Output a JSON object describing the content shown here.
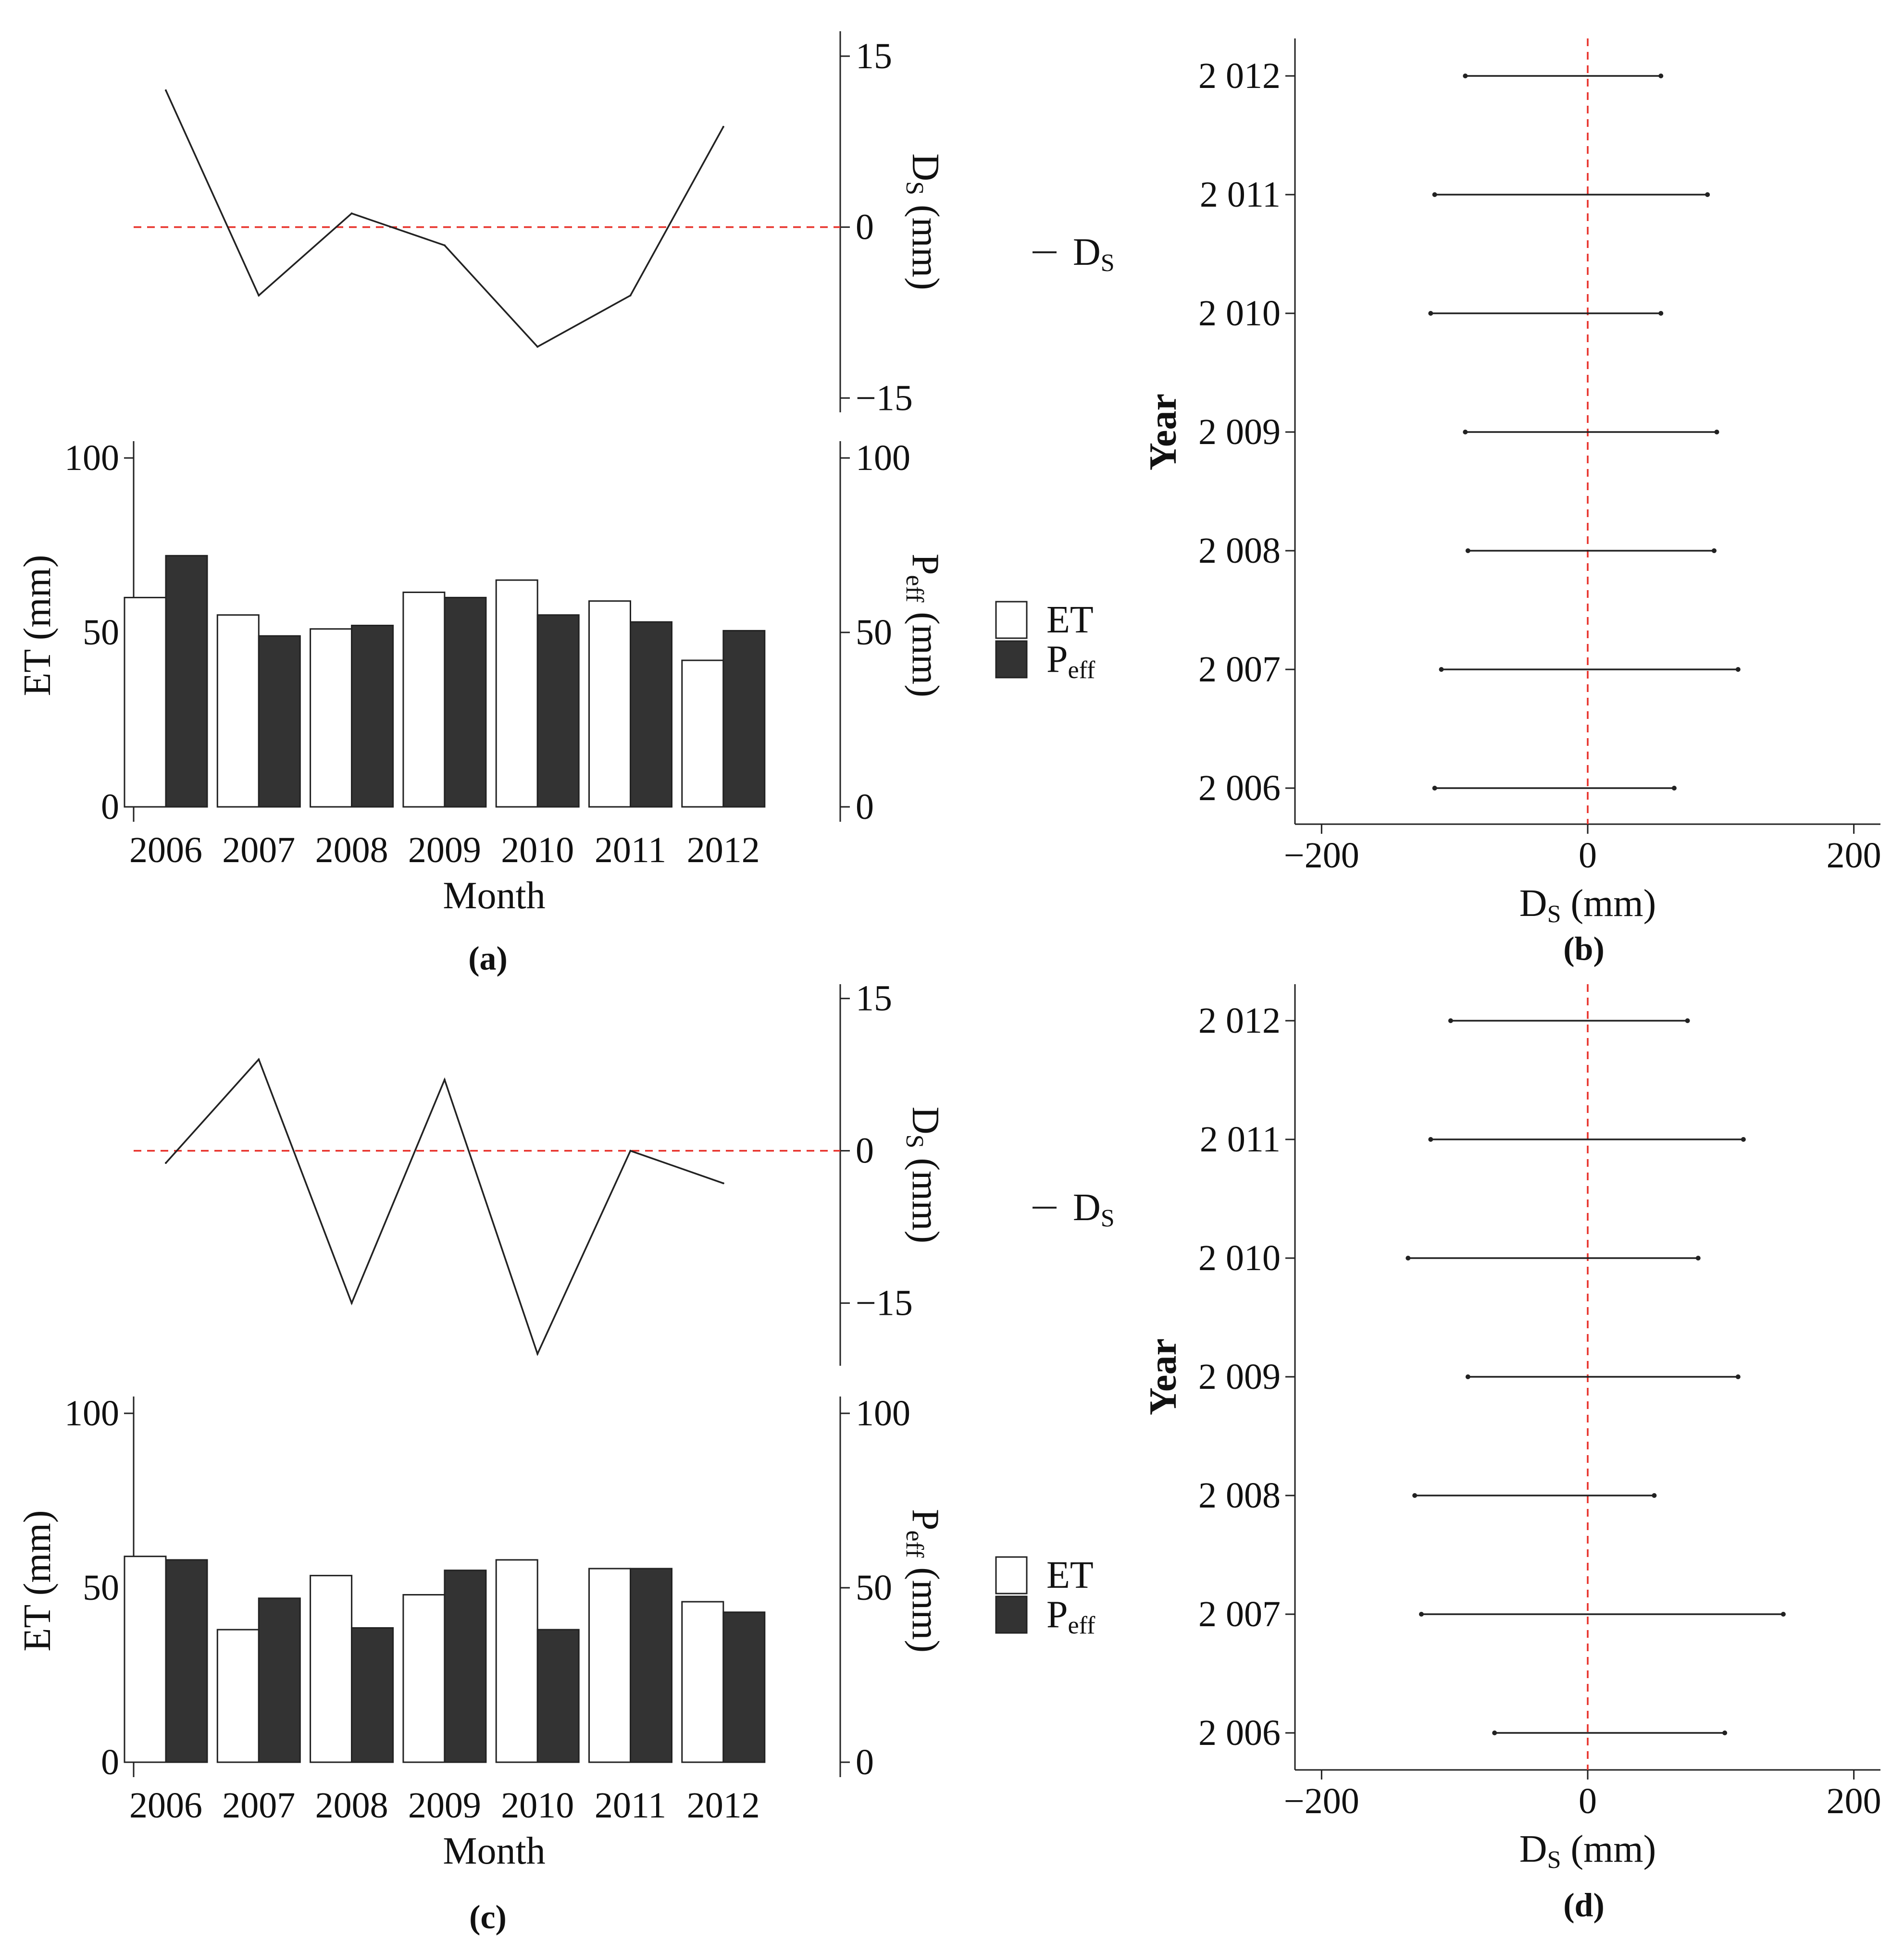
{
  "figure": {
    "panel_labels": [
      "(a)",
      "(b)",
      "(c)",
      "(d)"
    ]
  },
  "colors": {
    "et_fill": "#ffffff",
    "peff_fill": "#333333",
    "bar_stroke": "#222222",
    "line": "#222222",
    "axis": "#222222",
    "zero_line": "#e8312a",
    "text": "#111111"
  },
  "chart_data": [
    {
      "id": "a-top",
      "type": "line",
      "panel": "(a)",
      "series": [
        {
          "name": "D_S",
          "values": [
            12,
            -6,
            1.2,
            -1.6,
            -10.5,
            -6,
            8.8
          ]
        }
      ],
      "x": [
        "2006",
        "2007",
        "2008",
        "2009",
        "2010",
        "2011",
        "2012"
      ],
      "ylabel_main": "D",
      "ylabel_sub": "S",
      "ylabel_unit": " (mm)",
      "ylim": [
        -16,
        15.5
      ],
      "yticks": [
        15,
        0,
        -15
      ],
      "ytick_labels": [
        "15",
        "0",
        "−15"
      ],
      "reference_line": 0,
      "legend": {
        "main": "D",
        "sub": "S"
      }
    },
    {
      "id": "a-bottom",
      "type": "bar",
      "panel": "(a)",
      "categories": [
        "2006",
        "2007",
        "2008",
        "2009",
        "2010",
        "2011",
        "2012"
      ],
      "series": [
        {
          "name": "ET",
          "values": [
            60,
            55,
            51,
            61.5,
            65,
            59,
            42
          ]
        },
        {
          "name": "P_eff",
          "values": [
            72,
            49,
            52,
            60,
            55,
            53,
            50.5
          ]
        }
      ],
      "xlabel": "Month",
      "ylabel_left": "ET (mm)",
      "ylabel_right_main": "P",
      "ylabel_right_sub": "eff",
      "ylabel_right_unit": " (mm)",
      "ylim": [
        0,
        104
      ],
      "yticks": [
        0,
        50,
        100
      ],
      "ytick_labels": [
        "0",
        "50",
        "100"
      ],
      "legend": [
        {
          "main": "ET",
          "sub": ""
        },
        {
          "main": "P",
          "sub": "eff"
        }
      ]
    },
    {
      "id": "b",
      "type": "errorbar",
      "panel": "(b)",
      "categories": [
        "2 006",
        "2 007",
        "2 008",
        "2 009",
        "2 010",
        "2 011",
        "2 012"
      ],
      "lower": [
        -115,
        -110,
        -90,
        -92,
        -118,
        -115,
        -92
      ],
      "upper": [
        65,
        113,
        95,
        97,
        55,
        90,
        55
      ],
      "xlim": [
        -220,
        220
      ],
      "xticks": [
        -200,
        0,
        200
      ],
      "xtick_labels": [
        "−200",
        "0",
        "200"
      ],
      "xlabel_main": "D",
      "xlabel_sub": "S",
      "xlabel_unit": " (mm)",
      "ylabel": "Year",
      "reference_line": 0
    },
    {
      "id": "c-top",
      "type": "line",
      "panel": "(c)",
      "series": [
        {
          "name": "D_S",
          "values": [
            -1.2,
            9,
            -15,
            7,
            -20,
            0,
            -3.2
          ]
        }
      ],
      "x": [
        "2006",
        "2007",
        "2008",
        "2009",
        "2010",
        "2011",
        "2012"
      ],
      "ylabel_main": "D",
      "ylabel_sub": "S",
      "ylabel_unit": " (mm)",
      "ylim": [
        -21.5,
        16.5
      ],
      "yticks": [
        15,
        0,
        -15
      ],
      "ytick_labels": [
        "15",
        "0",
        "−15"
      ],
      "reference_line": 0,
      "legend": {
        "main": "D",
        "sub": "S"
      }
    },
    {
      "id": "c-bottom",
      "type": "bar",
      "panel": "(c)",
      "categories": [
        "2006",
        "2007",
        "2008",
        "2009",
        "2010",
        "2011",
        "2012"
      ],
      "series": [
        {
          "name": "ET",
          "values": [
            59,
            38,
            53.5,
            48,
            58,
            55.5,
            46
          ]
        },
        {
          "name": "P_eff",
          "values": [
            58,
            47,
            38.5,
            55,
            38,
            55.5,
            43
          ]
        }
      ],
      "xlabel": "Month",
      "ylabel_left": "ET (mm)",
      "ylabel_right_main": "P",
      "ylabel_right_sub": "eff",
      "ylabel_right_unit": " (mm)",
      "ylim": [
        0,
        104
      ],
      "yticks": [
        0,
        50,
        100
      ],
      "ytick_labels": [
        "0",
        "50",
        "100"
      ],
      "legend": [
        {
          "main": "ET",
          "sub": ""
        },
        {
          "main": "P",
          "sub": "eff"
        }
      ]
    },
    {
      "id": "d",
      "type": "errorbar",
      "panel": "(d)",
      "categories": [
        "2 006",
        "2 007",
        "2 008",
        "2 009",
        "2 010",
        "2 011",
        "2 012"
      ],
      "lower": [
        -70,
        -125,
        -130,
        -90,
        -135,
        -118,
        -103
      ],
      "upper": [
        103,
        147,
        50,
        113,
        83,
        117,
        75
      ],
      "xlim": [
        -220,
        220
      ],
      "xticks": [
        -200,
        0,
        200
      ],
      "xtick_labels": [
        "−200",
        "0",
        "200"
      ],
      "xlabel_main": "D",
      "xlabel_sub": "S",
      "xlabel_unit": " (mm)",
      "ylabel": "Year",
      "reference_line": 0
    }
  ]
}
